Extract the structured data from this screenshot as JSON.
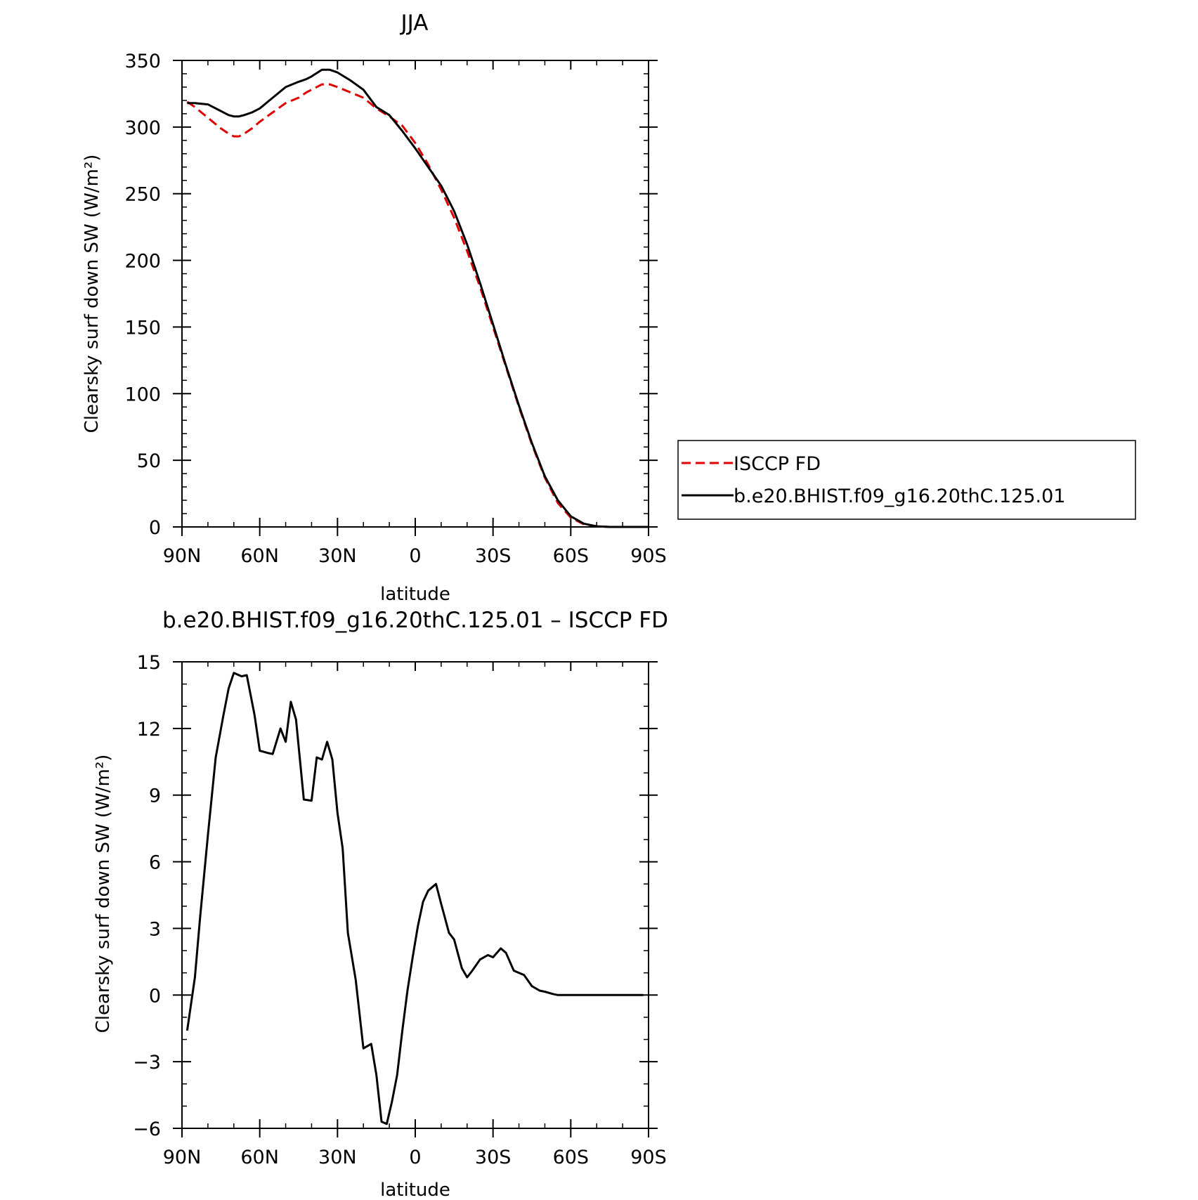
{
  "chart_data": [
    {
      "type": "line",
      "title": "JJA",
      "xlabel": "latitude",
      "ylabel": "Clearsky surf down SW (W/m²)",
      "xlim": [
        -90,
        90
      ],
      "ylim": [
        0,
        350
      ],
      "x_ticks": [
        -90,
        -60,
        -30,
        0,
        30,
        60,
        90
      ],
      "x_tick_labels": [
        "90N",
        "60N",
        "30N",
        "0",
        "30S",
        "60S",
        "90S"
      ],
      "y_ticks": [
        0,
        50,
        100,
        150,
        200,
        250,
        300,
        350
      ],
      "y_tick_labels": [
        "0",
        "50",
        "100",
        "150",
        "200",
        "250",
        "300",
        "350"
      ],
      "legend_placement": "right",
      "series": [
        {
          "name": "ISCCP FD",
          "color": "#e00000",
          "style": "dashed",
          "x": [
            -88,
            -85,
            -80,
            -75,
            -72,
            -70,
            -68,
            -66,
            -63,
            -60,
            -55,
            -50,
            -45,
            -42,
            -40,
            -36,
            -33,
            -30,
            -25,
            -20,
            -15,
            -10,
            -5,
            0,
            5,
            10,
            15,
            20,
            25,
            30,
            35,
            40,
            45,
            50,
            55,
            60,
            65,
            70,
            75,
            80,
            85,
            90
          ],
          "values": [
            319,
            315,
            307,
            299,
            295,
            293,
            293,
            295,
            299,
            304,
            311,
            318,
            322,
            326,
            328,
            332,
            332,
            330,
            326,
            322,
            314,
            308,
            301,
            288,
            272,
            253,
            232,
            207,
            180,
            150,
            120,
            90,
            62,
            37,
            18,
            7,
            2,
            0.5,
            0,
            0,
            0,
            0
          ]
        },
        {
          "name": "b.e20.BHIST.f09_g16.20thC.125.01",
          "color": "#000000",
          "style": "solid",
          "x": [
            -88,
            -85,
            -80,
            -75,
            -72,
            -70,
            -68,
            -66,
            -63,
            -60,
            -55,
            -50,
            -45,
            -42,
            -40,
            -36,
            -33,
            -30,
            -25,
            -20,
            -15,
            -10,
            -5,
            0,
            5,
            10,
            15,
            20,
            25,
            30,
            35,
            40,
            45,
            50,
            55,
            60,
            65,
            70,
            75,
            80,
            85,
            90
          ],
          "values": [
            318,
            318,
            317,
            312,
            309,
            308,
            308,
            309,
            311,
            314,
            322,
            330,
            334,
            336,
            338,
            343,
            343,
            341,
            335,
            328,
            315,
            309,
            297,
            284,
            270,
            256,
            237,
            212,
            183,
            152,
            121,
            91,
            63,
            38,
            20,
            8,
            2.5,
            0.5,
            0,
            0,
            0,
            0
          ]
        }
      ]
    },
    {
      "type": "line",
      "title": "b.e20.BHIST.f09_g16.20thC.125.01 – ISCCP FD",
      "xlabel": "latitude",
      "ylabel": "Clearsky surf down SW (W/m²)",
      "xlim": [
        -90,
        90
      ],
      "ylim": [
        -6,
        15
      ],
      "x_ticks": [
        -90,
        -60,
        -30,
        0,
        30,
        60,
        90
      ],
      "x_tick_labels": [
        "90N",
        "60N",
        "30N",
        "0",
        "30S",
        "60S",
        "90S"
      ],
      "y_ticks": [
        -6,
        -3,
        0,
        3,
        6,
        9,
        12,
        15
      ],
      "y_tick_labels": [
        "−6",
        "−3",
        "0",
        "3",
        "6",
        "9",
        "12",
        "15"
      ],
      "series": [
        {
          "color": "#000000",
          "style": "solid",
          "x": [
            -88,
            -85,
            -83,
            -80,
            -77,
            -74,
            -72,
            -70,
            -67,
            -65,
            -62,
            -60,
            -57,
            -55,
            -52,
            -50,
            -48,
            -46,
            -43,
            -40,
            -38,
            -36,
            -34,
            -32,
            -30,
            -28,
            -26,
            -23,
            -20,
            -17,
            -15,
            -13,
            -11,
            -9,
            -7,
            -5,
            -3,
            -1,
            1,
            3,
            5,
            8,
            10,
            13,
            15,
            18,
            20,
            22,
            25,
            28,
            30,
            33,
            35,
            38,
            40,
            42,
            45,
            48,
            50,
            53,
            55,
            58,
            60,
            62,
            65,
            68,
            70,
            73,
            75,
            78,
            80,
            83,
            85,
            88
          ],
          "values": [
            -1.6,
            0.8,
            3.5,
            7.2,
            10.7,
            12.6,
            13.8,
            14.5,
            14.35,
            14.4,
            12.6,
            11.0,
            10.9,
            10.85,
            12.0,
            11.4,
            13.2,
            12.4,
            8.8,
            8.75,
            10.7,
            10.6,
            11.4,
            10.6,
            8.2,
            6.6,
            2.8,
            0.7,
            -2.4,
            -2.2,
            -3.6,
            -5.7,
            -5.8,
            -4.8,
            -3.6,
            -1.6,
            0.2,
            1.7,
            3.1,
            4.2,
            4.7,
            5.0,
            4.1,
            2.8,
            2.5,
            1.2,
            0.8,
            1.1,
            1.6,
            1.8,
            1.7,
            2.1,
            1.9,
            1.1,
            1.0,
            0.9,
            0.4,
            0.2,
            0.15,
            0.05,
            0.0,
            0.0,
            0.0,
            0.0,
            0.0,
            0.0,
            0.0,
            0.0,
            0.0,
            0.0,
            0.0,
            0.0,
            0.0,
            0.0
          ]
        }
      ]
    }
  ]
}
